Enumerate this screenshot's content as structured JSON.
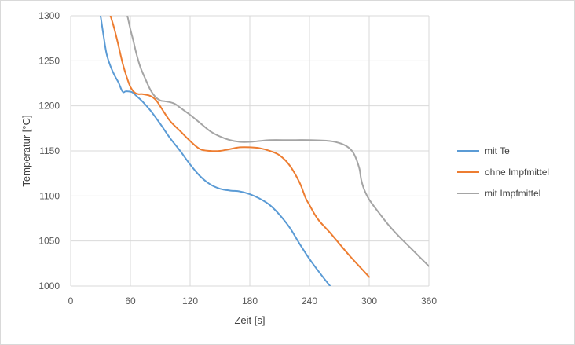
{
  "chart_data": {
    "type": "line",
    "title": "",
    "xlabel": "Zeit [s]",
    "ylabel": "Temperatur [°C]",
    "xlim": [
      0,
      360
    ],
    "ylim": [
      1000,
      1300
    ],
    "x_ticks": [
      "0",
      "60",
      "120",
      "180",
      "240",
      "300",
      "360"
    ],
    "y_ticks": [
      "1000",
      "1050",
      "1100",
      "1150",
      "1200",
      "1250",
      "1300"
    ],
    "grid": true,
    "legend_position": "right",
    "series": [
      {
        "name": "mit Te",
        "color": "#5b9bd5",
        "x": [
          30,
          33,
          36,
          40,
          44,
          48,
          51,
          53,
          55,
          58,
          62,
          66,
          72,
          80,
          90,
          100,
          110,
          120,
          130,
          140,
          150,
          160,
          170,
          180,
          190,
          200,
          210,
          220,
          230,
          240,
          250,
          260,
          270
        ],
        "y": [
          1300,
          1278,
          1258,
          1244,
          1234,
          1226,
          1218,
          1215,
          1216,
          1216,
          1215,
          1211,
          1205,
          1195,
          1180,
          1164,
          1150,
          1135,
          1122,
          1113,
          1108,
          1106,
          1105,
          1102,
          1097,
          1090,
          1079,
          1065,
          1047,
          1030,
          1015,
          1001,
          988
        ]
      },
      {
        "name": "ohne Impfmittel",
        "color": "#ed7d31",
        "x": [
          40,
          44,
          48,
          52,
          56,
          60,
          64,
          68,
          72,
          80,
          86,
          92,
          100,
          110,
          120,
          130,
          140,
          150,
          160,
          170,
          180,
          190,
          200,
          210,
          220,
          230,
          236,
          240,
          245,
          250,
          260,
          270,
          280,
          290,
          300
        ],
        "y": [
          1300,
          1285,
          1267,
          1248,
          1233,
          1221,
          1215,
          1213,
          1213,
          1211,
          1206,
          1196,
          1183,
          1172,
          1161,
          1152,
          1150,
          1150,
          1152,
          1154,
          1154,
          1153,
          1150,
          1145,
          1134,
          1115,
          1098,
          1090,
          1080,
          1072,
          1060,
          1047,
          1034,
          1022,
          1010
        ]
      },
      {
        "name": "mit Impfmittel",
        "color": "#a5a5a5",
        "x": [
          57,
          60,
          63,
          66,
          70,
          75,
          80,
          85,
          90,
          95,
          100,
          105,
          110,
          120,
          130,
          140,
          150,
          160,
          170,
          180,
          190,
          200,
          220,
          240,
          260,
          272,
          280,
          285,
          290,
          292,
          295,
          300,
          310,
          320,
          330,
          340,
          350,
          360
        ],
        "y": [
          1300,
          1285,
          1272,
          1258,
          1243,
          1230,
          1218,
          1210,
          1206,
          1205,
          1204,
          1202,
          1198,
          1190,
          1181,
          1172,
          1166,
          1162,
          1160,
          1160,
          1161,
          1162,
          1162,
          1162,
          1161,
          1158,
          1153,
          1146,
          1131,
          1118,
          1107,
          1096,
          1081,
          1067,
          1055,
          1044,
          1033,
          1022
        ]
      }
    ]
  }
}
